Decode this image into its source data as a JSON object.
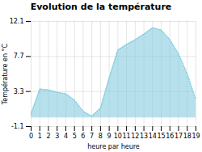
{
  "chart_data": {
    "type": "area",
    "title": "Evolution de la température",
    "x": [
      0,
      1,
      2,
      3,
      4,
      5,
      6,
      7,
      8,
      9,
      10,
      11,
      12,
      13,
      14,
      15,
      16,
      17,
      18,
      19
    ],
    "values": [
      0.5,
      3.6,
      3.5,
      3.2,
      3.0,
      2.2,
      0.8,
      0.2,
      1.2,
      5.0,
      8.5,
      9.2,
      9.8,
      10.5,
      11.3,
      11.0,
      9.8,
      8.0,
      5.5,
      2.2
    ],
    "baseline": 0.0,
    "xlabel": "heure par heure",
    "ylabel": "Température en °C",
    "color": "#85cde0",
    "line_style": "dotted",
    "xlim": [
      0,
      19
    ],
    "xticks": [
      0,
      1,
      2,
      3,
      4,
      5,
      6,
      7,
      8,
      9,
      10,
      11,
      12,
      13,
      14,
      15,
      16,
      17,
      18,
      19
    ],
    "ylim": [
      -1.1,
      12.1
    ],
    "yticks": [
      -1.1,
      3.3,
      7.7,
      12.1
    ],
    "grid": true
  }
}
